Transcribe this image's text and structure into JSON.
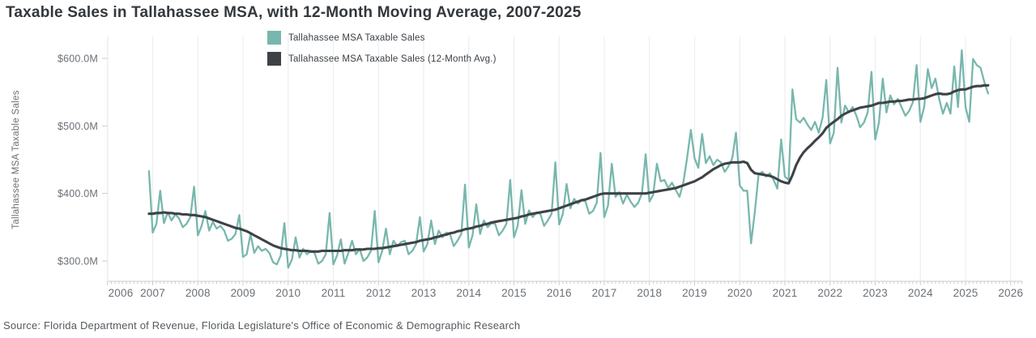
{
  "page": {
    "source": "Source: Florida Department of Revenue, Florida Legislature's Office of Economic & Demographic Research"
  },
  "chart_data": {
    "type": "line",
    "title": "Taxable Sales in Tallahassee MSA, with 12-Month Moving Average, 2007-2025",
    "ylabel": "Tallahassee MSA Taxable Sales",
    "x_unit": "month",
    "start": "2006-12",
    "end": "2025-06",
    "grid": "vertical-years-only",
    "legend_position": "top-center",
    "ylim_visible": [
      270,
      630
    ],
    "x_ticks": [
      "2006",
      "2007",
      "2008",
      "2009",
      "2010",
      "2011",
      "2012",
      "2013",
      "2014",
      "2015",
      "2016",
      "2017",
      "2018",
      "2019",
      "2020",
      "2021",
      "2022",
      "2023",
      "2024",
      "2025",
      "2026"
    ],
    "y_ticks": [
      {
        "value": 600,
        "label": "$600.0M"
      },
      {
        "value": 500,
        "label": "$500.0M"
      },
      {
        "value": 400,
        "label": "$400.0M"
      },
      {
        "value": 300,
        "label": "$300.0M"
      }
    ],
    "series": [
      {
        "name": "Tallahassee MSA Taxable Sales",
        "color": "#78b7ad",
        "values": [
          433,
          342,
          355,
          404,
          356,
          372,
          360,
          369,
          363,
          350,
          355,
          365,
          410,
          338,
          352,
          374,
          345,
          358,
          348,
          352,
          345,
          330,
          333,
          340,
          368,
          306,
          310,
          340,
          312,
          322,
          315,
          318,
          312,
          298,
          295,
          308,
          356,
          290,
          302,
          335,
          305,
          318,
          310,
          315,
          312,
          296,
          300,
          310,
          371,
          295,
          308,
          332,
          296,
          312,
          330,
          310,
          318,
          300,
          305,
          315,
          374,
          298,
          315,
          348,
          310,
          330,
          322,
          328,
          330,
          310,
          315,
          325,
          365,
          314,
          325,
          360,
          325,
          345,
          335,
          342,
          340,
          322,
          330,
          340,
          413,
          320,
          338,
          384,
          340,
          360,
          350,
          356,
          355,
          338,
          345,
          355,
          420,
          335,
          352,
          405,
          355,
          375,
          365,
          372,
          370,
          352,
          360,
          370,
          446,
          354,
          370,
          414,
          378,
          392,
          385,
          390,
          388,
          370,
          374,
          386,
          460,
          365,
          382,
          444,
          395,
          402,
          385,
          398,
          388,
          380,
          386,
          400,
          458,
          388,
          398,
          444,
          418,
          420,
          408,
          416,
          405,
          395,
          416,
          452,
          494,
          452,
          438,
          488,
          445,
          455,
          442,
          450,
          446,
          432,
          440,
          452,
          490,
          412,
          404,
          404,
          326,
          372,
          428,
          432,
          425,
          430,
          420,
          407,
          480,
          425,
          420,
          554,
          510,
          505,
          512,
          502,
          494,
          506,
          490,
          512,
          568,
          474,
          490,
          586,
          505,
          530,
          520,
          528,
          515,
          498,
          505,
          520,
          580,
          480,
          505,
          570,
          520,
          545,
          532,
          540,
          528,
          515,
          522,
          535,
          590,
          506,
          528,
          584,
          556,
          570,
          540,
          518,
          534,
          518,
          588,
          528,
          612,
          528,
          506,
          599,
          590,
          586,
          565,
          548
        ]
      },
      {
        "name": "Tallahassee MSA Taxable Sales (12-Month Avg.)",
        "color": "#3e4246",
        "values": [
          370,
          370,
          371,
          371,
          372,
          371,
          371,
          370,
          370,
          369,
          369,
          368,
          368,
          367,
          366,
          365,
          363,
          361,
          359,
          357,
          355,
          353,
          351,
          349,
          348,
          346,
          344,
          341,
          338,
          335,
          332,
          329,
          326,
          323,
          321,
          319,
          318,
          317,
          316,
          316,
          315,
          315,
          315,
          314,
          314,
          314,
          315,
          315,
          315,
          315,
          315,
          315,
          316,
          316,
          316,
          317,
          317,
          317,
          318,
          318,
          318,
          319,
          319,
          320,
          321,
          322,
          323,
          324,
          325,
          326,
          327,
          328,
          330,
          331,
          332,
          333,
          335,
          336,
          338,
          339,
          341,
          342,
          344,
          345,
          347,
          348,
          349,
          351,
          352,
          354,
          355,
          357,
          358,
          359,
          360,
          361,
          362,
          363,
          364,
          366,
          367,
          369,
          370,
          371,
          372,
          373,
          374,
          375,
          376,
          378,
          380,
          382,
          384,
          386,
          388,
          390,
          391,
          393,
          395,
          397,
          399,
          400,
          400,
          400,
          400,
          400,
          400,
          400,
          400,
          400,
          400,
          400,
          400,
          401,
          402,
          403,
          404,
          405,
          406,
          407,
          408,
          410,
          412,
          414,
          416,
          418,
          421,
          424,
          428,
          432,
          436,
          439,
          442,
          444,
          445,
          446,
          446,
          446,
          447,
          445,
          435,
          430,
          429,
          428,
          427,
          426,
          424,
          421,
          418,
          416,
          415,
          427,
          442,
          453,
          461,
          467,
          472,
          478,
          483,
          489,
          497,
          502,
          506,
          510,
          515,
          518,
          521,
          523,
          525,
          527,
          528,
          529,
          530,
          532,
          534,
          534,
          535,
          536,
          536,
          537,
          537,
          538,
          539,
          539,
          540,
          540,
          541,
          543,
          545,
          547,
          548,
          547,
          547,
          548,
          551,
          553,
          554,
          554,
          556,
          558,
          559,
          559,
          560,
          560
        ]
      }
    ]
  }
}
